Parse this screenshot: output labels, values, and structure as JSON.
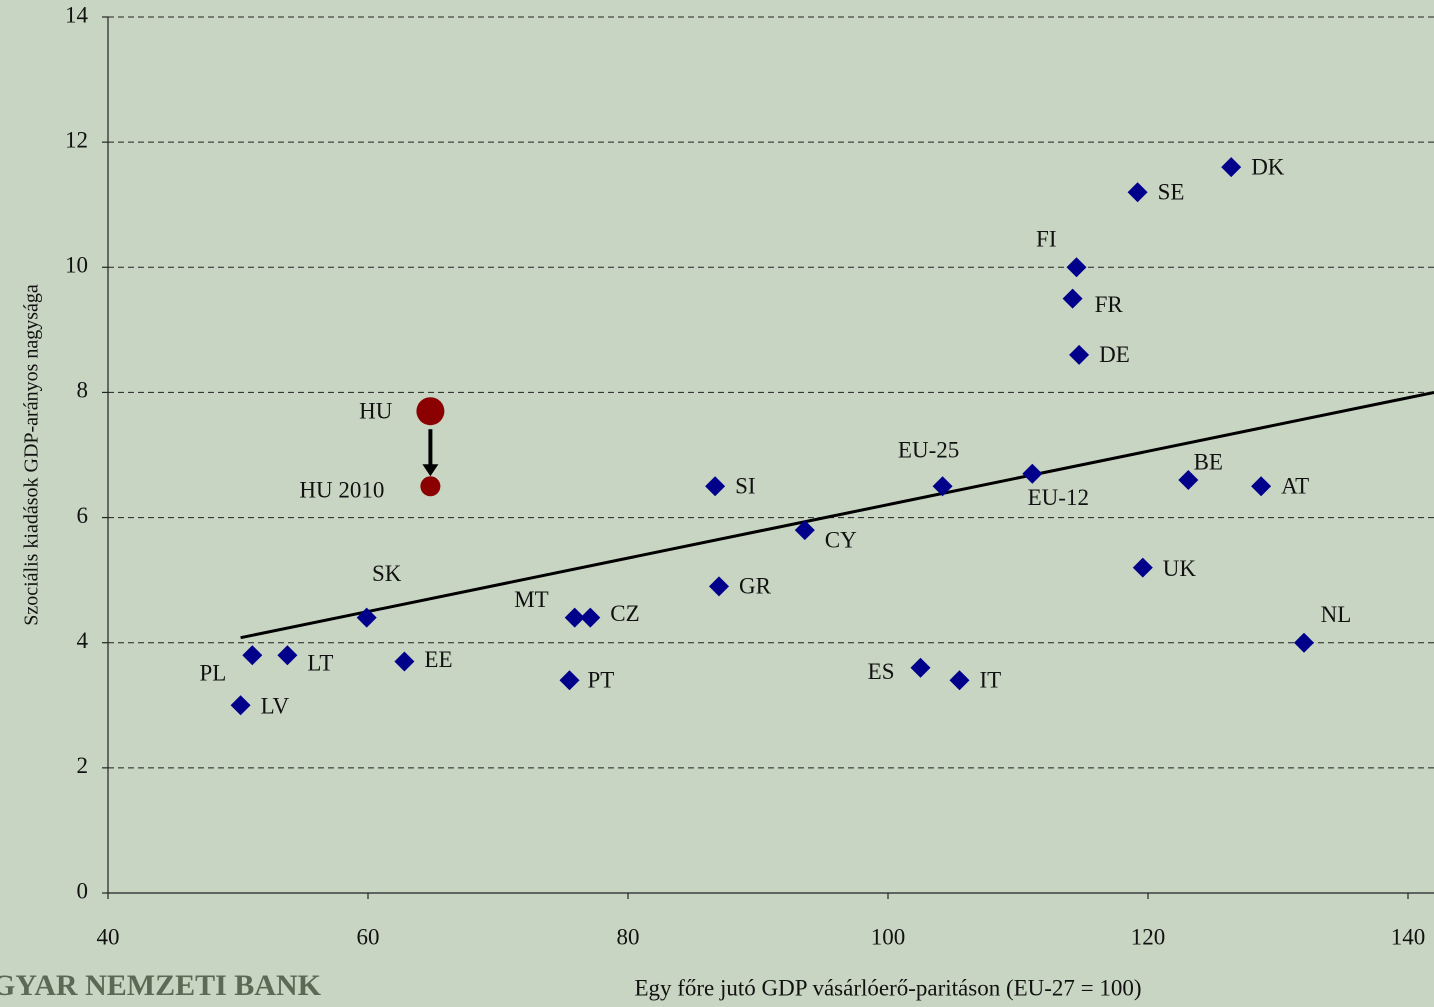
{
  "chart_data": {
    "type": "scatter",
    "x_label": "Egy főre jutó GDP vásárlóerő-paritáson (EU-27 = 100)",
    "y_label": "Szociális kiadások GDP-arányos nagysága",
    "watermark": "GYAR NEMZETI BANK",
    "xlim": [
      40,
      142
    ],
    "ylim": [
      0,
      14
    ],
    "xticks": [
      40,
      60,
      80,
      100,
      120,
      140
    ],
    "yticks": [
      0,
      2,
      4,
      6,
      8,
      10,
      12,
      14
    ],
    "grid": true,
    "series": [
      {
        "color": "#00008b",
        "marker": "diamond",
        "labels": [
          "PL",
          "LT",
          "LV",
          "SK",
          "EE",
          "PT",
          "MT",
          "CZ",
          "SI",
          "GR",
          "CY",
          "ES",
          "IT",
          "EU-25",
          "EU-12",
          "FI",
          "FR",
          "DE",
          "SE",
          "DK",
          "BE",
          "AT",
          "UK",
          "NL"
        ],
        "x": [
          51.1,
          53.8,
          50.2,
          59.9,
          62.8,
          75.5,
          75.9,
          77.1,
          86.7,
          87.0,
          93.6,
          102.5,
          105.5,
          104.2,
          111.1,
          114.5,
          114.2,
          114.7,
          119.2,
          126.4,
          123.1,
          128.7,
          119.6,
          132.0
        ],
        "values": [
          3.8,
          3.8,
          3.0,
          4.4,
          3.7,
          3.4,
          4.4,
          4.4,
          6.5,
          4.9,
          5.8,
          3.6,
          3.4,
          6.5,
          6.7,
          10.0,
          9.5,
          8.6,
          11.2,
          11.6,
          6.6,
          6.5,
          5.2,
          4.0
        ]
      },
      {
        "color": "#8b0000",
        "marker": "circle",
        "labels": [
          "HU",
          "HU 2010"
        ],
        "x": [
          64.8,
          64.8
        ],
        "values": [
          7.7,
          6.5
        ]
      }
    ],
    "trendline": {
      "color": "#000000",
      "x": [
        50.2,
        142
      ],
      "values": [
        4.08,
        8.0
      ]
    }
  }
}
